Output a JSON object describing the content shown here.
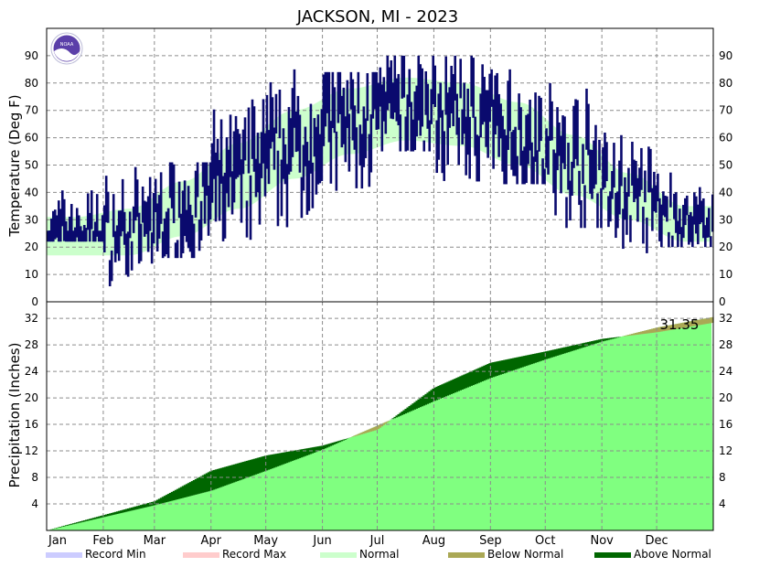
{
  "chart_data": [
    {
      "type": "bar",
      "panel": "temperature",
      "title": "JACKSON, MI - 2023",
      "ylabel": "Temperature (Deg F)",
      "ylim": [
        0,
        100
      ],
      "yticks": [
        0,
        10,
        20,
        30,
        40,
        50,
        60,
        70,
        80,
        90
      ],
      "months": [
        "Jan",
        "Feb",
        "Mar",
        "Apr",
        "May",
        "Jun",
        "Jul",
        "Aug",
        "Sep",
        "Oct",
        "Nov",
        "Dec"
      ],
      "grid": true,
      "normal_band_monthly": [
        {
          "month": "Jan",
          "low": 17,
          "high": 31
        },
        {
          "month": "Feb",
          "low": 17,
          "high": 34
        },
        {
          "month": "Mar",
          "low": 24,
          "high": 44
        },
        {
          "month": "Apr",
          "low": 34,
          "high": 58
        },
        {
          "month": "May",
          "low": 45,
          "high": 70
        },
        {
          "month": "Jun",
          "low": 54,
          "high": 78
        },
        {
          "month": "Jul",
          "low": 59,
          "high": 82
        },
        {
          "month": "Aug",
          "low": 57,
          "high": 80
        },
        {
          "month": "Sep",
          "low": 50,
          "high": 73
        },
        {
          "month": "Oct",
          "low": 39,
          "high": 61
        },
        {
          "month": "Nov",
          "low": 30,
          "high": 47
        },
        {
          "month": "Dec",
          "low": 22,
          "high": 35
        }
      ],
      "observed_monthly_range": [
        {
          "month": "Jan",
          "low": 22,
          "high": 53
        },
        {
          "month": "Feb",
          "low": 1,
          "high": 56
        },
        {
          "month": "Mar",
          "low": 16,
          "high": 51
        },
        {
          "month": "Apr",
          "low": 17,
          "high": 84
        },
        {
          "month": "May",
          "low": 27,
          "high": 85
        },
        {
          "month": "Jun",
          "low": 38,
          "high": 84
        },
        {
          "month": "Jul",
          "low": 55,
          "high": 90
        },
        {
          "month": "Aug",
          "low": 44,
          "high": 90
        },
        {
          "month": "Sep",
          "low": 43,
          "high": 85
        },
        {
          "month": "Oct",
          "low": 27,
          "high": 80
        },
        {
          "month": "Nov",
          "low": 16,
          "high": 68
        },
        {
          "month": "Dec",
          "low": 20,
          "high": 55
        }
      ]
    },
    {
      "type": "area",
      "panel": "precipitation",
      "ylabel": "Precipitation (Inches)",
      "ylim": [
        0,
        34.5
      ],
      "yticks": [
        4,
        8,
        12,
        16,
        20,
        24,
        28,
        32
      ],
      "grid": true,
      "annotation": "31.35",
      "normal_cumulative_month_start": [
        {
          "date": "Jan 1",
          "value": 0.0
        },
        {
          "date": "Feb 1",
          "value": 2.0
        },
        {
          "date": "Mar 1",
          "value": 3.8
        },
        {
          "date": "Apr 1",
          "value": 6.0
        },
        {
          "date": "May 1",
          "value": 9.0
        },
        {
          "date": "Jun 1",
          "value": 12.2
        },
        {
          "date": "Jul 1",
          "value": 15.8
        },
        {
          "date": "Aug 1",
          "value": 19.5
        },
        {
          "date": "Sep 1",
          "value": 23.0
        },
        {
          "date": "Oct 1",
          "value": 25.8
        },
        {
          "date": "Nov 1",
          "value": 28.5
        },
        {
          "date": "Dec 1",
          "value": 30.6
        },
        {
          "date": "Dec 31",
          "value": 32.2
        }
      ],
      "observed_cumulative_month_start": [
        {
          "date": "Jan 1",
          "value": 0.0
        },
        {
          "date": "Feb 1",
          "value": 2.3
        },
        {
          "date": "Mar 1",
          "value": 4.4
        },
        {
          "date": "Apr 1",
          "value": 9.0
        },
        {
          "date": "May 1",
          "value": 11.3
        },
        {
          "date": "Jun 1",
          "value": 12.8
        },
        {
          "date": "Jul 1",
          "value": 15.2
        },
        {
          "date": "Aug 1",
          "value": 21.5
        },
        {
          "date": "Sep 1",
          "value": 25.3
        },
        {
          "date": "Oct 1",
          "value": 27.0
        },
        {
          "date": "Nov 1",
          "value": 28.9
        },
        {
          "date": "Dec 1",
          "value": 29.9
        },
        {
          "date": "Dec 31",
          "value": 31.35
        }
      ],
      "legend": [
        {
          "label": "Record Min",
          "color": "#ccccff"
        },
        {
          "label": "Record Max",
          "color": "#ffcccc"
        },
        {
          "label": "Normal",
          "color": "#ccffcc"
        },
        {
          "label": "Below Normal",
          "color": "#aaa855"
        },
        {
          "label": "Above Normal",
          "color": "#006600"
        }
      ]
    }
  ],
  "colors": {
    "temperature_bar": "#0a0a6e",
    "normal_temp_band": "#ccffcc",
    "precip_normal_fill": "#80ff80",
    "precip_above": "#006600",
    "precip_below": "#aaa855"
  },
  "logo_text": "NOAA"
}
